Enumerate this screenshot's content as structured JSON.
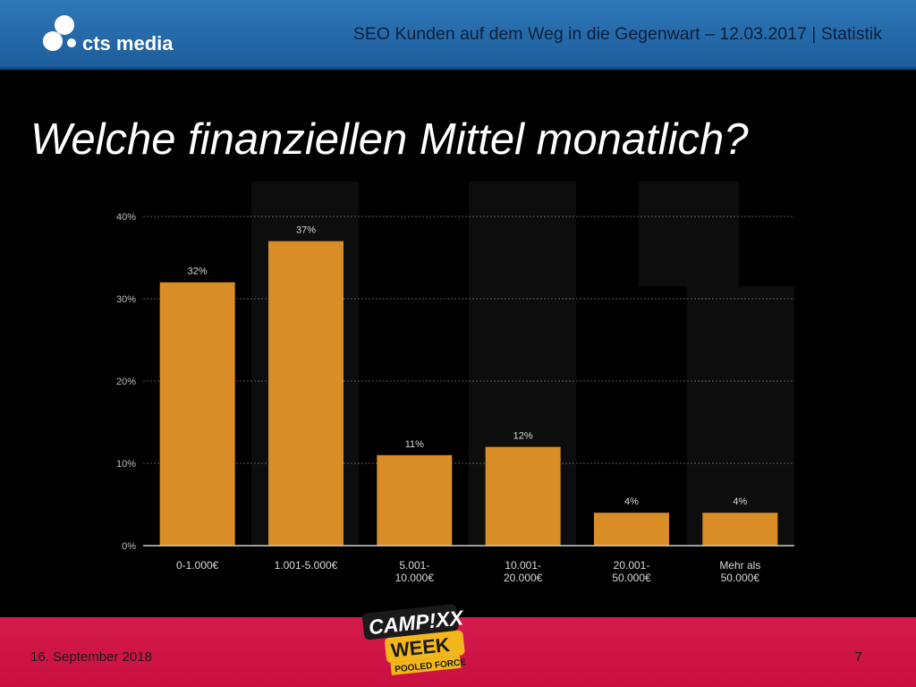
{
  "header": {
    "brand_name": "cts media",
    "title": "SEO Kunden auf dem Weg in die Gegenwart – 12.03.2017 | Statistik"
  },
  "slide": {
    "title": "Welche finanziellen Mittel monatlich?"
  },
  "footer": {
    "date": "16. September 2018",
    "page_number": "7",
    "event_logo_lines": [
      "CAMP!XX",
      "WEEK",
      "POOLED FORCE"
    ]
  },
  "colors": {
    "header_blue": "#2a6fb0",
    "footer_red": "#d0154a",
    "bar_orange": "#d98d27",
    "background": "#000000"
  },
  "chart_data": {
    "type": "bar",
    "categories": [
      [
        "0-1.000€"
      ],
      [
        "1.001-5.000€"
      ],
      [
        "5.001-",
        "10.000€"
      ],
      [
        "10.001-",
        "20.000€"
      ],
      [
        "20.001-",
        "50.000€"
      ],
      [
        "Mehr als",
        "50.000€"
      ]
    ],
    "values": [
      32,
      37,
      11,
      12,
      4,
      4
    ],
    "value_labels": [
      "32%",
      "37%",
      "11%",
      "12%",
      "4%",
      "4%"
    ],
    "y_ticks": [
      "0%",
      "10%",
      "20%",
      "30%",
      "40%"
    ],
    "y_tick_values": [
      0,
      10,
      20,
      30,
      40
    ],
    "ylim": [
      0,
      40
    ],
    "grid": true,
    "title": "",
    "xlabel": "",
    "ylabel": ""
  }
}
